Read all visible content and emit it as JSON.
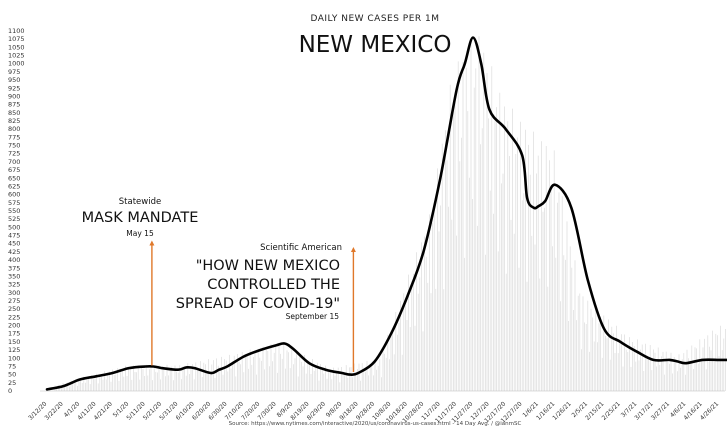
{
  "chart_data": {
    "type": "line",
    "subtitle": "DAILY NEW CASES PER 1M",
    "title": "NEW MEXICO",
    "ylim": [
      0,
      1100
    ],
    "yticks": [
      0,
      25,
      50,
      75,
      100,
      125,
      150,
      175,
      200,
      225,
      250,
      275,
      300,
      325,
      350,
      375,
      400,
      425,
      450,
      475,
      500,
      525,
      550,
      575,
      600,
      625,
      650,
      675,
      700,
      725,
      750,
      775,
      800,
      825,
      850,
      875,
      900,
      925,
      950,
      975,
      1000,
      1025,
      1050,
      1075,
      1100
    ],
    "x_tick_labels": [
      "3/12/20",
      "3/22/20",
      "4/1/20",
      "4/11/20",
      "4/21/20",
      "5/1/20",
      "5/11/20",
      "5/21/20",
      "5/31/20",
      "6/10/20",
      "6/20/20",
      "6/30/20",
      "7/10/20",
      "7/20/20",
      "7/30/20",
      "8/9/20",
      "8/19/20",
      "8/29/20",
      "9/8/20",
      "9/18/20",
      "9/28/20",
      "10/8/20",
      "10/18/20",
      "10/28/20",
      "11/7/20",
      "11/17/20",
      "11/27/20",
      "12/7/20",
      "12/17/20",
      "12/27/20",
      "1/6/21",
      "1/16/21",
      "1/26/21",
      "2/5/21",
      "2/15/21",
      "2/25/21",
      "3/7/21",
      "3/17/21",
      "3/27/21",
      "4/6/21",
      "4/16/21",
      "4/26/21"
    ],
    "grid": false,
    "series": [
      {
        "type": "line",
        "x": [
          "3/12/20",
          "3/22/20",
          "4/1/20",
          "4/11/20",
          "4/21/20",
          "5/1/20",
          "5/11/20",
          "5/16/20",
          "5/21/20",
          "5/31/20",
          "6/5/20",
          "6/10/20",
          "6/20/20",
          "6/25/20",
          "6/30/20",
          "7/10/20",
          "7/20/20",
          "7/30/20",
          "8/4/20",
          "8/9/20",
          "8/19/20",
          "8/29/20",
          "9/8/20",
          "9/13/20",
          "9/18/20",
          "9/28/20",
          "10/8/20",
          "10/18/20",
          "10/28/20",
          "11/7/20",
          "11/17/20",
          "11/22/20",
          "11/27/20",
          "12/2/20",
          "12/7/20",
          "12/17/20",
          "12/27/20",
          "12/30/20",
          "1/3/21",
          "1/6/21",
          "1/10/21",
          "1/16/21",
          "1/26/21",
          "2/5/21",
          "2/15/21",
          "2/25/21",
          "3/7/21",
          "3/17/21",
          "3/27/21",
          "4/1/21",
          "4/6/21",
          "4/16/21",
          "4/26/21",
          "5/1/21"
        ],
        "y": [
          5,
          15,
          35,
          45,
          55,
          70,
          75,
          75,
          70,
          65,
          72,
          70,
          55,
          65,
          75,
          105,
          125,
          140,
          145,
          130,
          85,
          65,
          55,
          50,
          55,
          90,
          175,
          290,
          430,
          650,
          920,
          1000,
          1080,
          1000,
          860,
          800,
          720,
          590,
          560,
          565,
          580,
          630,
          560,
          340,
          190,
          150,
          120,
          95,
          95,
          90,
          85,
          95,
          95,
          95
        ]
      },
      {
        "type": "bar",
        "note": "faint daily bars",
        "x": [
          "3/12/20",
          "4/1/20",
          "5/1/20",
          "6/1/20",
          "7/1/20",
          "8/1/20",
          "9/1/20",
          "10/1/20",
          "11/1/20",
          "11/15/20",
          "12/1/20",
          "12/15/20",
          "1/1/21",
          "1/15/21",
          "2/1/21",
          "3/1/21",
          "4/1/21",
          "4/26/21"
        ],
        "y": [
          10,
          40,
          80,
          80,
          110,
          150,
          70,
          100,
          550,
          1000,
          1100,
          900,
          800,
          750,
          300,
          170,
          110,
          200
        ]
      }
    ],
    "annotations": [
      {
        "kicker": "Statewide",
        "headline": [
          "MASK MANDATE"
        ],
        "date": "May 15",
        "x": "5/15/20",
        "y_tip": 460
      },
      {
        "kicker": "Scientific American",
        "headline": [
          "\"HOW NEW MEXICO",
          "CONTROLLED THE",
          "SPREAD OF COVID-19\""
        ],
        "date": "September 15",
        "x": "9/15/20",
        "y_tip": 440
      }
    ],
    "source": "Source: https://www.nytimes.com/interactive/2020/us/coronavirus-us-cases.html - 14 Day Avg. / @ianmSC",
    "colors": {
      "line": "#000000",
      "bars": "#dcdcdc",
      "arrow": "#e0782a"
    }
  }
}
